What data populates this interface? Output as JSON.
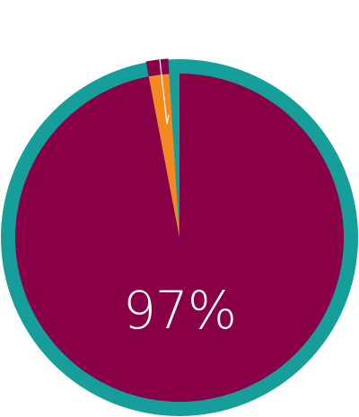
{
  "chart_data": {
    "type": "pie",
    "center_label": "97%",
    "slices": [
      {
        "value": 97,
        "color": "#8a0046"
      },
      {
        "value": 2,
        "color": "#f28a1f"
      },
      {
        "value": 1,
        "color": "#169f9a"
      }
    ],
    "ring_color": "#169f9a"
  }
}
